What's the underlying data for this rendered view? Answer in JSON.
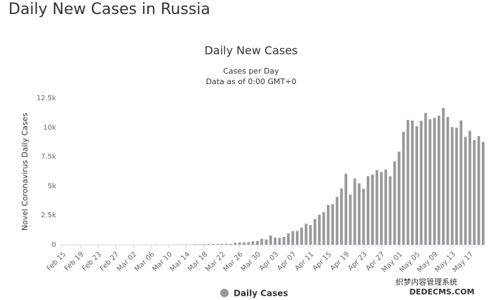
{
  "page_title": "Daily New Cases in Russia",
  "watermark": [
    "织梦内容管理系统",
    "DEDECMS.COM"
  ],
  "chart_data": {
    "type": "bar",
    "title": "Daily New Cases",
    "subtitle": [
      "Cases per Day",
      "Data as of 0:00 GMT+0"
    ],
    "y_label": "Novel Coronavirus Daily Cases",
    "categories": [
      "Feb 15",
      null,
      null,
      null,
      "Feb 19",
      null,
      null,
      null,
      "Feb 23",
      null,
      null,
      null,
      "Feb 27",
      null,
      null,
      null,
      "Mar 02",
      null,
      null,
      null,
      "Mar 06",
      null,
      null,
      null,
      "Mar 10",
      null,
      null,
      null,
      "Mar 14",
      null,
      null,
      null,
      "Mar 18",
      null,
      null,
      null,
      "Mar 22",
      null,
      null,
      null,
      "Mar 26",
      null,
      null,
      null,
      "Mar 30",
      null,
      null,
      null,
      "Apr 03",
      null,
      null,
      null,
      "Apr 07",
      null,
      null,
      null,
      "Apr 11",
      null,
      null,
      null,
      "Apr 15",
      null,
      null,
      null,
      "Apr 19",
      null,
      null,
      null,
      "Apr 23",
      null,
      null,
      null,
      "Apr 27",
      null,
      null,
      null,
      "May 01",
      null,
      null,
      null,
      "May 05",
      null,
      null,
      null,
      "May 09",
      null,
      null,
      null,
      "May 13",
      null,
      null,
      null,
      "May 17",
      null,
      null,
      null
    ],
    "series": [
      {
        "name": "Daily Cases",
        "color": "#999999",
        "values": [
          0,
          0,
          0,
          0,
          0,
          0,
          0,
          0,
          0,
          0,
          0,
          0,
          0,
          0,
          0,
          0,
          1,
          0,
          0,
          1,
          1,
          10,
          0,
          0,
          3,
          8,
          6,
          17,
          14,
          4,
          30,
          21,
          33,
          52,
          54,
          53,
          61,
          71,
          57,
          163,
          182,
          196,
          228,
          270,
          302,
          500,
          440,
          771,
          601,
          582,
          658,
          954,
          1154,
          1175,
          1459,
          1786,
          1667,
          2186,
          2558,
          2774,
          3388,
          3448,
          4070,
          4785,
          6060,
          4268,
          5642,
          5236,
          4774,
          5849,
          5966,
          6361,
          6198,
          6411,
          5841,
          7099,
          7933,
          9623,
          10633,
          10581,
          10102,
          10559,
          11231,
          10699,
          10817,
          11012,
          11656,
          10899,
          10028,
          9974,
          10598,
          9200,
          9709,
          8926,
          9263,
          8764
        ]
      }
    ],
    "ylim": [
      0,
      12500
    ],
    "yticks": [
      0,
      {
        "value": 2500,
        "label": "2.5k"
      },
      {
        "value": 5000,
        "label": "5k"
      },
      {
        "value": 7500,
        "label": "7.5k"
      },
      {
        "value": 10000,
        "label": "10k"
      },
      {
        "value": 12500,
        "label": "12.5k"
      }
    ],
    "grid": false
  }
}
